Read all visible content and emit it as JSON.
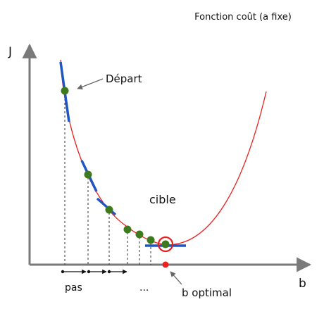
{
  "title": "Fonction coût (a fixe)",
  "axis": {
    "y_label": "J",
    "x_label": "b"
  },
  "annotations": {
    "start": "Départ",
    "target": "cible",
    "step": "pas",
    "ellipsis": "...",
    "optimum": "b optimal"
  },
  "colors": {
    "curve": "#e8211f",
    "tangent": "#2055c4",
    "point": "#3d7a1e",
    "target_ring": "#e8211f",
    "optimum_dot": "#e8211f",
    "axis": "#7a7a7a",
    "guide": "#333333",
    "step_arrow": "#111111"
  }
}
